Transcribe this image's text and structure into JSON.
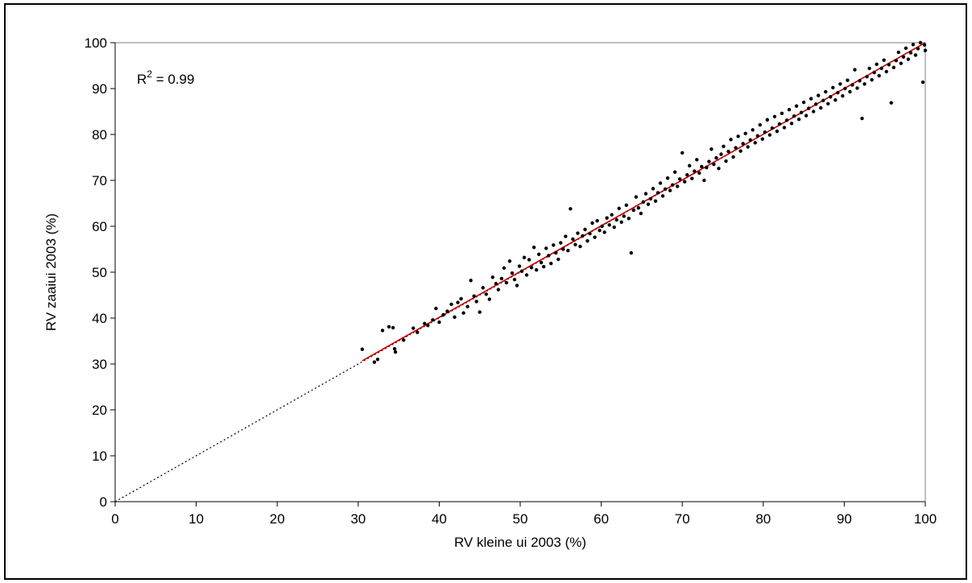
{
  "chart_data": {
    "type": "scatter",
    "title": "",
    "xlabel": "RV kleine ui 2003 (%)",
    "ylabel": "RV zaaiui 2003 (%)",
    "xlim": [
      0,
      100
    ],
    "ylim": [
      0,
      100
    ],
    "xticks": [
      0,
      10,
      20,
      30,
      40,
      50,
      60,
      70,
      80,
      90,
      100
    ],
    "yticks": [
      0,
      10,
      20,
      30,
      40,
      50,
      60,
      70,
      80,
      90,
      100
    ],
    "grid": false,
    "legend": "none",
    "annotation": {
      "r_label": "R",
      "r_exp": "2",
      "r_value": " = 0.99"
    },
    "reference_line": {
      "style": "dotted",
      "color": "#000000",
      "from": [
        0,
        0
      ],
      "to": [
        100,
        100
      ]
    },
    "trend_line": {
      "color": "#cc0000",
      "from": [
        30.5,
        30.7
      ],
      "to": [
        100,
        100
      ]
    },
    "point_color": "#000000",
    "points": [
      [
        30.5,
        33.2
      ],
      [
        32.0,
        30.4
      ],
      [
        32.4,
        31.0
      ],
      [
        33.0,
        37.3
      ],
      [
        33.8,
        38.1
      ],
      [
        34.3,
        37.9
      ],
      [
        34.5,
        33.3
      ],
      [
        34.6,
        32.6
      ],
      [
        35.6,
        35.2
      ],
      [
        36.8,
        37.8
      ],
      [
        37.3,
        36.9
      ],
      [
        38.2,
        38.8
      ],
      [
        38.6,
        38.4
      ],
      [
        39.2,
        39.6
      ],
      [
        39.6,
        42.1
      ],
      [
        40.0,
        39.1
      ],
      [
        40.5,
        40.7
      ],
      [
        41.0,
        41.5
      ],
      [
        41.5,
        43.0
      ],
      [
        41.9,
        40.2
      ],
      [
        42.3,
        43.4
      ],
      [
        42.7,
        44.2
      ],
      [
        43.0,
        41.1
      ],
      [
        43.5,
        42.5
      ],
      [
        43.9,
        48.2
      ],
      [
        44.3,
        44.8
      ],
      [
        44.6,
        43.6
      ],
      [
        45.0,
        41.3
      ],
      [
        45.4,
        46.6
      ],
      [
        45.8,
        45.2
      ],
      [
        46.2,
        44.1
      ],
      [
        46.6,
        48.9
      ],
      [
        47.0,
        47.5
      ],
      [
        47.3,
        46.2
      ],
      [
        47.7,
        48.6
      ],
      [
        48.0,
        50.9
      ],
      [
        48.3,
        47.7
      ],
      [
        48.7,
        52.4
      ],
      [
        49.0,
        49.8
      ],
      [
        49.3,
        48.4
      ],
      [
        49.6,
        47.1
      ],
      [
        49.9,
        51.3
      ],
      [
        50.2,
        50.2
      ],
      [
        50.5,
        53.2
      ],
      [
        50.8,
        49.4
      ],
      [
        51.1,
        52.7
      ],
      [
        51.4,
        51.0
      ],
      [
        51.7,
        55.4
      ],
      [
        52.0,
        50.5
      ],
      [
        52.3,
        53.9
      ],
      [
        52.6,
        52.1
      ],
      [
        52.9,
        51.2
      ],
      [
        53.2,
        55.2
      ],
      [
        53.5,
        53.6
      ],
      [
        53.8,
        51.9
      ],
      [
        54.1,
        55.9
      ],
      [
        54.4,
        54.2
      ],
      [
        54.7,
        52.8
      ],
      [
        55.0,
        56.4
      ],
      [
        55.3,
        55.0
      ],
      [
        55.6,
        57.8
      ],
      [
        55.9,
        54.7
      ],
      [
        56.2,
        63.8
      ],
      [
        56.5,
        57.2
      ],
      [
        56.8,
        56.0
      ],
      [
        57.1,
        58.5
      ],
      [
        57.4,
        55.6
      ],
      [
        57.7,
        57.9
      ],
      [
        58.0,
        59.3
      ],
      [
        58.3,
        56.8
      ],
      [
        58.6,
        58.4
      ],
      [
        58.9,
        60.7
      ],
      [
        59.2,
        57.6
      ],
      [
        59.5,
        61.2
      ],
      [
        59.8,
        59.1
      ],
      [
        60.1,
        60.0
      ],
      [
        60.4,
        58.7
      ],
      [
        60.7,
        61.8
      ],
      [
        61.0,
        60.3
      ],
      [
        61.3,
        62.5
      ],
      [
        61.6,
        59.8
      ],
      [
        61.9,
        61.4
      ],
      [
        62.2,
        63.9
      ],
      [
        62.5,
        60.9
      ],
      [
        62.8,
        62.2
      ],
      [
        63.1,
        64.6
      ],
      [
        63.4,
        61.7
      ],
      [
        63.7,
        54.2
      ],
      [
        64.0,
        63.5
      ],
      [
        64.3,
        66.4
      ],
      [
        64.6,
        64.0
      ],
      [
        64.9,
        62.8
      ],
      [
        65.2,
        65.3
      ],
      [
        65.5,
        67.1
      ],
      [
        65.8,
        64.8
      ],
      [
        66.1,
        66.0
      ],
      [
        66.4,
        68.2
      ],
      [
        66.7,
        65.5
      ],
      [
        67.0,
        67.3
      ],
      [
        67.3,
        69.4
      ],
      [
        67.6,
        66.6
      ],
      [
        67.9,
        68.1
      ],
      [
        68.2,
        70.5
      ],
      [
        68.5,
        67.8
      ],
      [
        68.8,
        69.0
      ],
      [
        69.1,
        71.8
      ],
      [
        69.4,
        68.7
      ],
      [
        69.7,
        70.3
      ],
      [
        70.0,
        76.0
      ],
      [
        70.3,
        69.7
      ],
      [
        70.6,
        71.2
      ],
      [
        70.9,
        73.2
      ],
      [
        71.2,
        70.4
      ],
      [
        71.5,
        72.0
      ],
      [
        71.8,
        74.5
      ],
      [
        72.1,
        71.6
      ],
      [
        72.4,
        73.0
      ],
      [
        72.7,
        70.0
      ],
      [
        73.0,
        72.8
      ],
      [
        73.3,
        74.1
      ],
      [
        73.6,
        76.8
      ],
      [
        73.9,
        73.5
      ],
      [
        74.2,
        74.9
      ],
      [
        74.5,
        72.6
      ],
      [
        74.8,
        75.7
      ],
      [
        75.1,
        77.4
      ],
      [
        75.4,
        74.2
      ],
      [
        75.7,
        76.3
      ],
      [
        76.0,
        78.9
      ],
      [
        76.3,
        75.1
      ],
      [
        76.6,
        77.1
      ],
      [
        76.9,
        79.6
      ],
      [
        77.2,
        76.4
      ],
      [
        77.5,
        78.0
      ],
      [
        77.8,
        80.2
      ],
      [
        78.1,
        77.3
      ],
      [
        78.4,
        78.8
      ],
      [
        78.7,
        81.0
      ],
      [
        79.0,
        78.2
      ],
      [
        79.3,
        79.7
      ],
      [
        79.6,
        82.1
      ],
      [
        79.9,
        79.0
      ],
      [
        80.2,
        80.5
      ],
      [
        80.5,
        83.2
      ],
      [
        80.8,
        79.9
      ],
      [
        81.1,
        81.4
      ],
      [
        81.4,
        83.9
      ],
      [
        81.7,
        80.7
      ],
      [
        82.0,
        82.3
      ],
      [
        82.3,
        84.6
      ],
      [
        82.6,
        81.5
      ],
      [
        82.9,
        83.1
      ],
      [
        83.2,
        85.4
      ],
      [
        83.5,
        82.4
      ],
      [
        83.8,
        84.0
      ],
      [
        84.1,
        86.2
      ],
      [
        84.4,
        83.3
      ],
      [
        84.7,
        84.8
      ],
      [
        85.0,
        87.0
      ],
      [
        85.3,
        84.1
      ],
      [
        85.6,
        85.7
      ],
      [
        85.9,
        87.8
      ],
      [
        86.2,
        85.0
      ],
      [
        86.5,
        86.6
      ],
      [
        86.8,
        88.5
      ],
      [
        87.1,
        85.8
      ],
      [
        87.4,
        87.4
      ],
      [
        87.7,
        89.3
      ],
      [
        88.0,
        86.7
      ],
      [
        88.3,
        88.2
      ],
      [
        88.6,
        90.2
      ],
      [
        88.9,
        87.5
      ],
      [
        89.2,
        89.1
      ],
      [
        89.5,
        91.0
      ],
      [
        89.8,
        88.4
      ],
      [
        90.1,
        90.0
      ],
      [
        90.4,
        91.8
      ],
      [
        90.7,
        89.3
      ],
      [
        91.0,
        90.8
      ],
      [
        91.3,
        94.1
      ],
      [
        91.6,
        90.1
      ],
      [
        91.9,
        91.7
      ],
      [
        92.2,
        83.5
      ],
      [
        92.5,
        91.0
      ],
      [
        92.8,
        92.6
      ],
      [
        93.1,
        94.4
      ],
      [
        93.4,
        91.9
      ],
      [
        93.7,
        93.5
      ],
      [
        94.0,
        95.3
      ],
      [
        94.3,
        92.8
      ],
      [
        94.6,
        94.4
      ],
      [
        94.9,
        96.2
      ],
      [
        95.2,
        93.7
      ],
      [
        95.5,
        95.2
      ],
      [
        95.8,
        86.9
      ],
      [
        96.1,
        94.6
      ],
      [
        96.4,
        96.1
      ],
      [
        96.7,
        97.9
      ],
      [
        97.0,
        95.5
      ],
      [
        97.3,
        96.9
      ],
      [
        97.6,
        98.8
      ],
      [
        97.9,
        96.4
      ],
      [
        98.2,
        97.8
      ],
      [
        98.5,
        99.6
      ],
      [
        98.8,
        97.3
      ],
      [
        99.1,
        98.7
      ],
      [
        99.4,
        100.0
      ],
      [
        99.7,
        91.4
      ],
      [
        99.9,
        99.5
      ],
      [
        100.0,
        98.3
      ]
    ]
  }
}
